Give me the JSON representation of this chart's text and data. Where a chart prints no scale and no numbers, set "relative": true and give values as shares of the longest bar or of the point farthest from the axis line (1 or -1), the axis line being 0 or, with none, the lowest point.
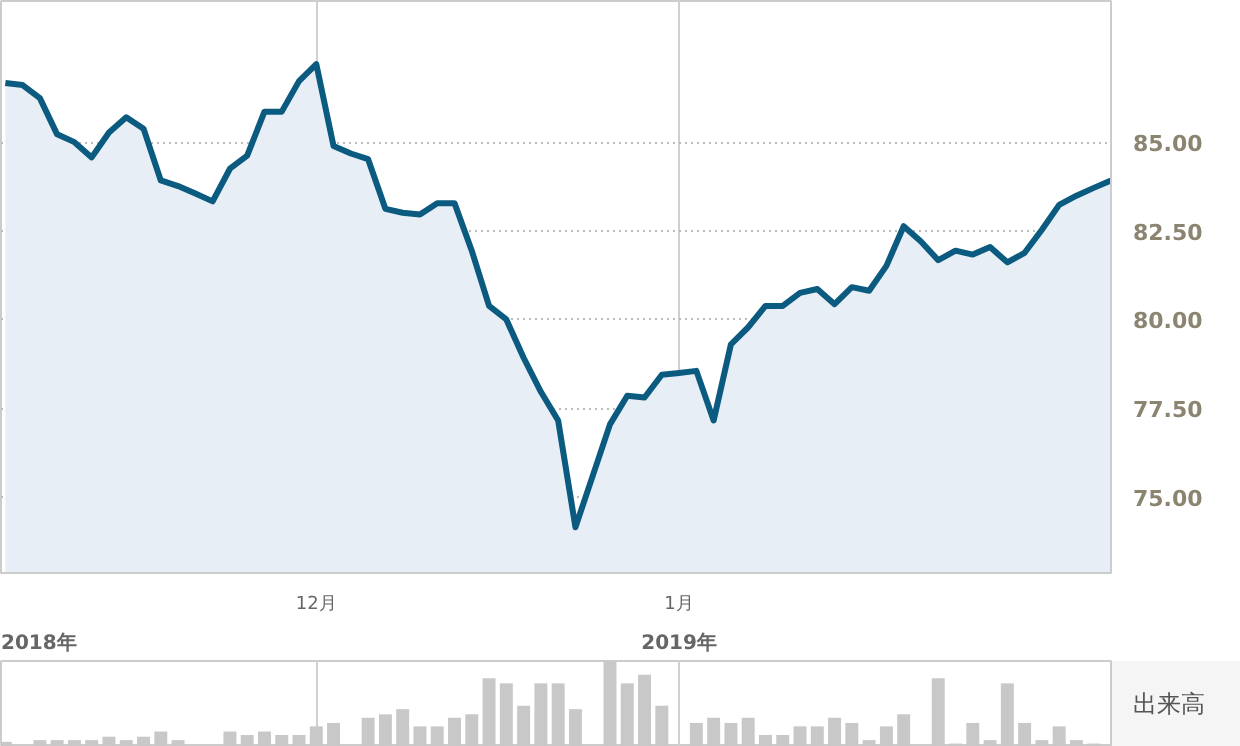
{
  "chart_data": [
    {
      "type": "area",
      "categories": [
        null,
        null,
        null,
        null,
        null,
        null,
        null,
        null,
        null,
        null,
        null,
        null,
        null,
        null,
        null,
        null,
        null,
        null,
        "12月",
        null,
        null,
        null,
        null,
        null,
        null,
        null,
        null,
        null,
        null,
        null,
        null,
        null,
        null,
        null,
        null,
        null,
        null,
        null,
        null,
        "1月",
        null,
        null,
        null,
        null,
        null,
        null,
        null,
        null,
        null,
        null,
        null,
        null,
        null,
        null,
        null,
        null,
        null,
        null,
        null,
        null,
        null,
        null,
        null,
        null,
        null
      ],
      "series": [
        {
          "color": "#0b5a80",
          "values": [
            86.67,
            86.61,
            86.24,
            85.22,
            85.0,
            84.57,
            85.27,
            85.7,
            85.38,
            83.92,
            83.76,
            83.55,
            83.33,
            84.25,
            84.62,
            85.86,
            85.86,
            86.72,
            87.2,
            84.89,
            84.68,
            84.52,
            83.12,
            83.01,
            82.96,
            83.28,
            83.28,
            81.94,
            80.38,
            80.0,
            78.92,
            77.96,
            77.15,
            74.14,
            75.59,
            77.04,
            77.85,
            77.8,
            78.44,
            78.49,
            78.55,
            77.15,
            79.3,
            79.78,
            80.38,
            80.38,
            80.75,
            80.86,
            80.43,
            80.91,
            80.81,
            81.51,
            82.63,
            82.2,
            81.67,
            81.94,
            81.83,
            82.04,
            81.61,
            81.88,
            82.53,
            83.23,
            83.49,
            83.71,
            83.92
          ]
        }
      ],
      "ylim": [
        72.85,
        88.98
      ],
      "yticks": [
        {
          "value": 75,
          "label": "75.00"
        },
        {
          "value": 77.5,
          "label": "77.50"
        },
        {
          "value": 80,
          "label": "80.00"
        },
        {
          "value": 82.5,
          "label": "82.50"
        },
        {
          "value": 85,
          "label": "85.00"
        }
      ],
      "annotations": [
        "2018年",
        "2019年"
      ],
      "grid": true
    },
    {
      "type": "bar",
      "relative": true,
      "ylabel": "出来高",
      "categories": [
        null,
        null,
        null,
        null,
        null,
        null,
        null,
        null,
        null,
        null,
        null,
        null,
        null,
        null,
        null,
        null,
        null,
        null,
        null,
        null,
        null,
        null,
        null,
        null,
        null,
        null,
        null,
        null,
        null,
        null,
        null,
        null,
        null,
        null,
        null,
        null,
        null,
        null,
        null,
        null,
        null,
        null,
        null,
        null,
        null,
        null,
        null,
        null,
        null,
        null,
        null,
        null,
        null,
        null,
        null,
        null,
        null,
        null,
        null,
        null,
        null,
        null,
        null,
        null,
        null
      ],
      "values": [
        0.06,
        null,
        0.08,
        0.08,
        0.08,
        0.08,
        0.12,
        0.08,
        0.12,
        0.18,
        0.08,
        null,
        null,
        0.18,
        0.14,
        0.18,
        0.14,
        0.14,
        0.24,
        0.28,
        null,
        0.34,
        0.38,
        0.44,
        0.24,
        0.24,
        0.34,
        0.38,
        0.8,
        0.74,
        0.48,
        0.74,
        0.74,
        0.44,
        null,
        1.0,
        0.74,
        0.84,
        0.48,
        null,
        0.28,
        0.34,
        0.28,
        0.34,
        0.14,
        0.14,
        0.24,
        0.24,
        0.34,
        0.28,
        0.08,
        0.24,
        0.38,
        null,
        0.8,
        0.04,
        0.28,
        0.08,
        0.74,
        0.28,
        0.08,
        0.24,
        0.08,
        0.04,
        null
      ],
      "color": "#c8c8c8",
      "grid": "x"
    }
  ]
}
